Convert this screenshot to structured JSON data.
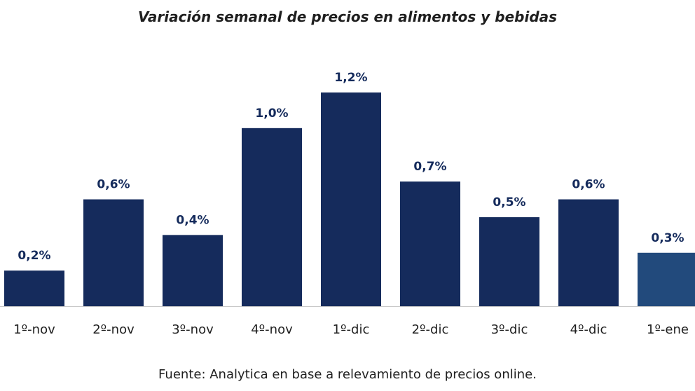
{
  "chart_data": {
    "type": "bar",
    "title": "Variación semanal de precios en alimentos y bebidas",
    "categories": [
      "1º-nov",
      "2º-nov",
      "3º-nov",
      "4º-nov",
      "1º-dic",
      "2º-dic",
      "3º-dic",
      "4º-dic",
      "1º-ene"
    ],
    "values": [
      0.2,
      0.6,
      0.4,
      1.0,
      1.2,
      0.7,
      0.5,
      0.6,
      0.3
    ],
    "value_labels": [
      "0,2%",
      "0,6%",
      "0,4%",
      "1,0%",
      "1,2%",
      "0,7%",
      "0,5%",
      "0,6%",
      "0,3%"
    ],
    "xlabel": "",
    "ylabel": "",
    "ylim": [
      0,
      1.2
    ],
    "grid": false,
    "highlight_index": 8
  },
  "colors": {
    "bar": "#152b5c",
    "bar_highlight": "#224a7c",
    "label": "#152b5c",
    "axis": "#c8c8c8",
    "text": "#1f1f1f"
  },
  "source": "Fuente: Analytica en base a relevamiento de precios online."
}
